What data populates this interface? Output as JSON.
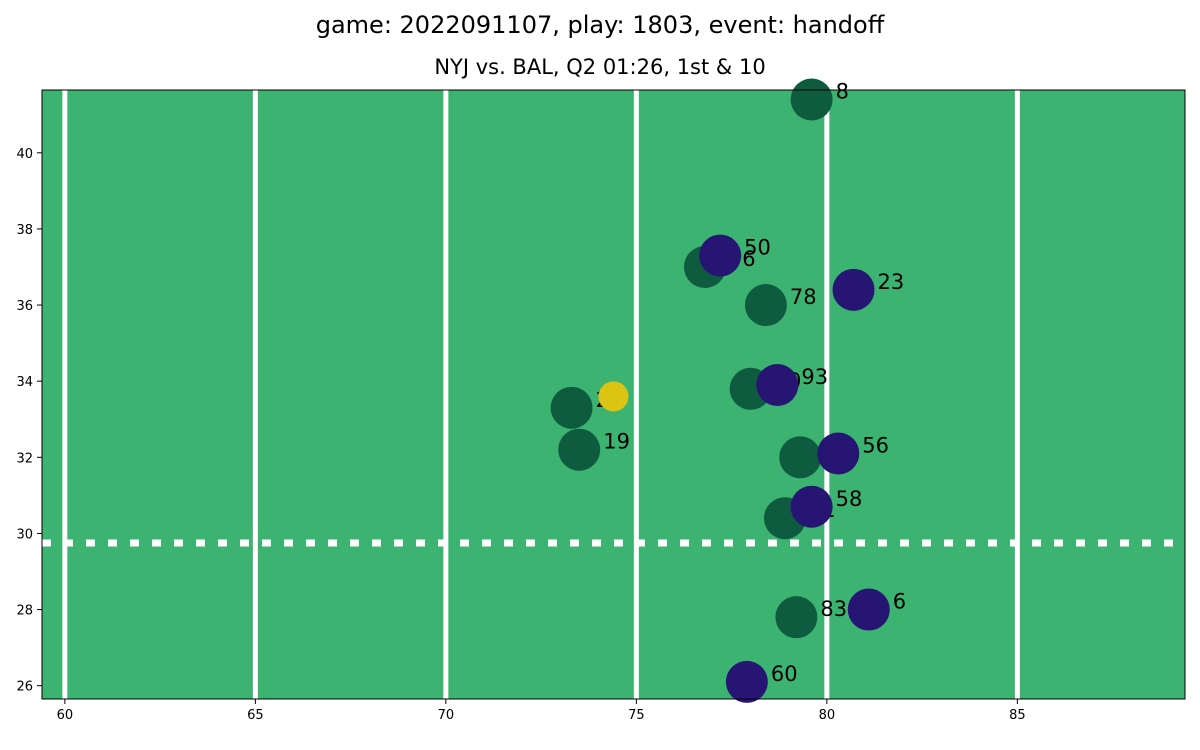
{
  "title": "game: 2022091107, play: 1803, event: handoff",
  "subtitle": "NYJ vs. BAL, Q2 01:26, 1st & 10",
  "colors": {
    "field": "#3cb371",
    "offense": "#0f5b40",
    "defense": "#261573",
    "ball": "#dcc414",
    "lines": "#ffffff"
  },
  "chart_data": {
    "type": "scatter",
    "xlim": [
      59.4,
      89.4
    ],
    "ylim": [
      25.65,
      41.65
    ],
    "x_ticks": [
      60,
      65,
      70,
      75,
      80,
      85
    ],
    "y_ticks": [
      26,
      28,
      30,
      32,
      34,
      36,
      38,
      40
    ],
    "yard_lines": [
      60,
      65,
      70,
      75,
      80,
      85
    ],
    "line_of_scrimmage_y": 29.75,
    "grid": false,
    "offense": [
      {
        "label": "8",
        "x": 79.6,
        "y": 41.4
      },
      {
        "label": "76",
        "x": 76.8,
        "y": 37.0
      },
      {
        "label": "78",
        "x": 78.4,
        "y": 36.0
      },
      {
        "label": "20",
        "x": 73.3,
        "y": 33.3
      },
      {
        "label": "60",
        "x": 78.0,
        "y": 33.8
      },
      {
        "label": "19",
        "x": 73.5,
        "y": 32.2
      },
      {
        "label": "75",
        "x": 79.3,
        "y": 32.0
      },
      {
        "label": "61",
        "x": 78.9,
        "y": 30.4
      },
      {
        "label": "83",
        "x": 79.2,
        "y": 27.8
      }
    ],
    "defense": [
      {
        "label": "50",
        "x": 77.2,
        "y": 37.3
      },
      {
        "label": "23",
        "x": 80.7,
        "y": 36.4
      },
      {
        "label": "93",
        "x": 78.7,
        "y": 33.9
      },
      {
        "label": "56",
        "x": 80.3,
        "y": 32.1
      },
      {
        "label": "58",
        "x": 79.6,
        "y": 30.7
      },
      {
        "label": "6",
        "x": 81.1,
        "y": 28.0
      },
      {
        "label": "60",
        "x": 77.9,
        "y": 26.1
      }
    ],
    "ball": [
      {
        "x": 74.4,
        "y": 33.6
      }
    ]
  }
}
